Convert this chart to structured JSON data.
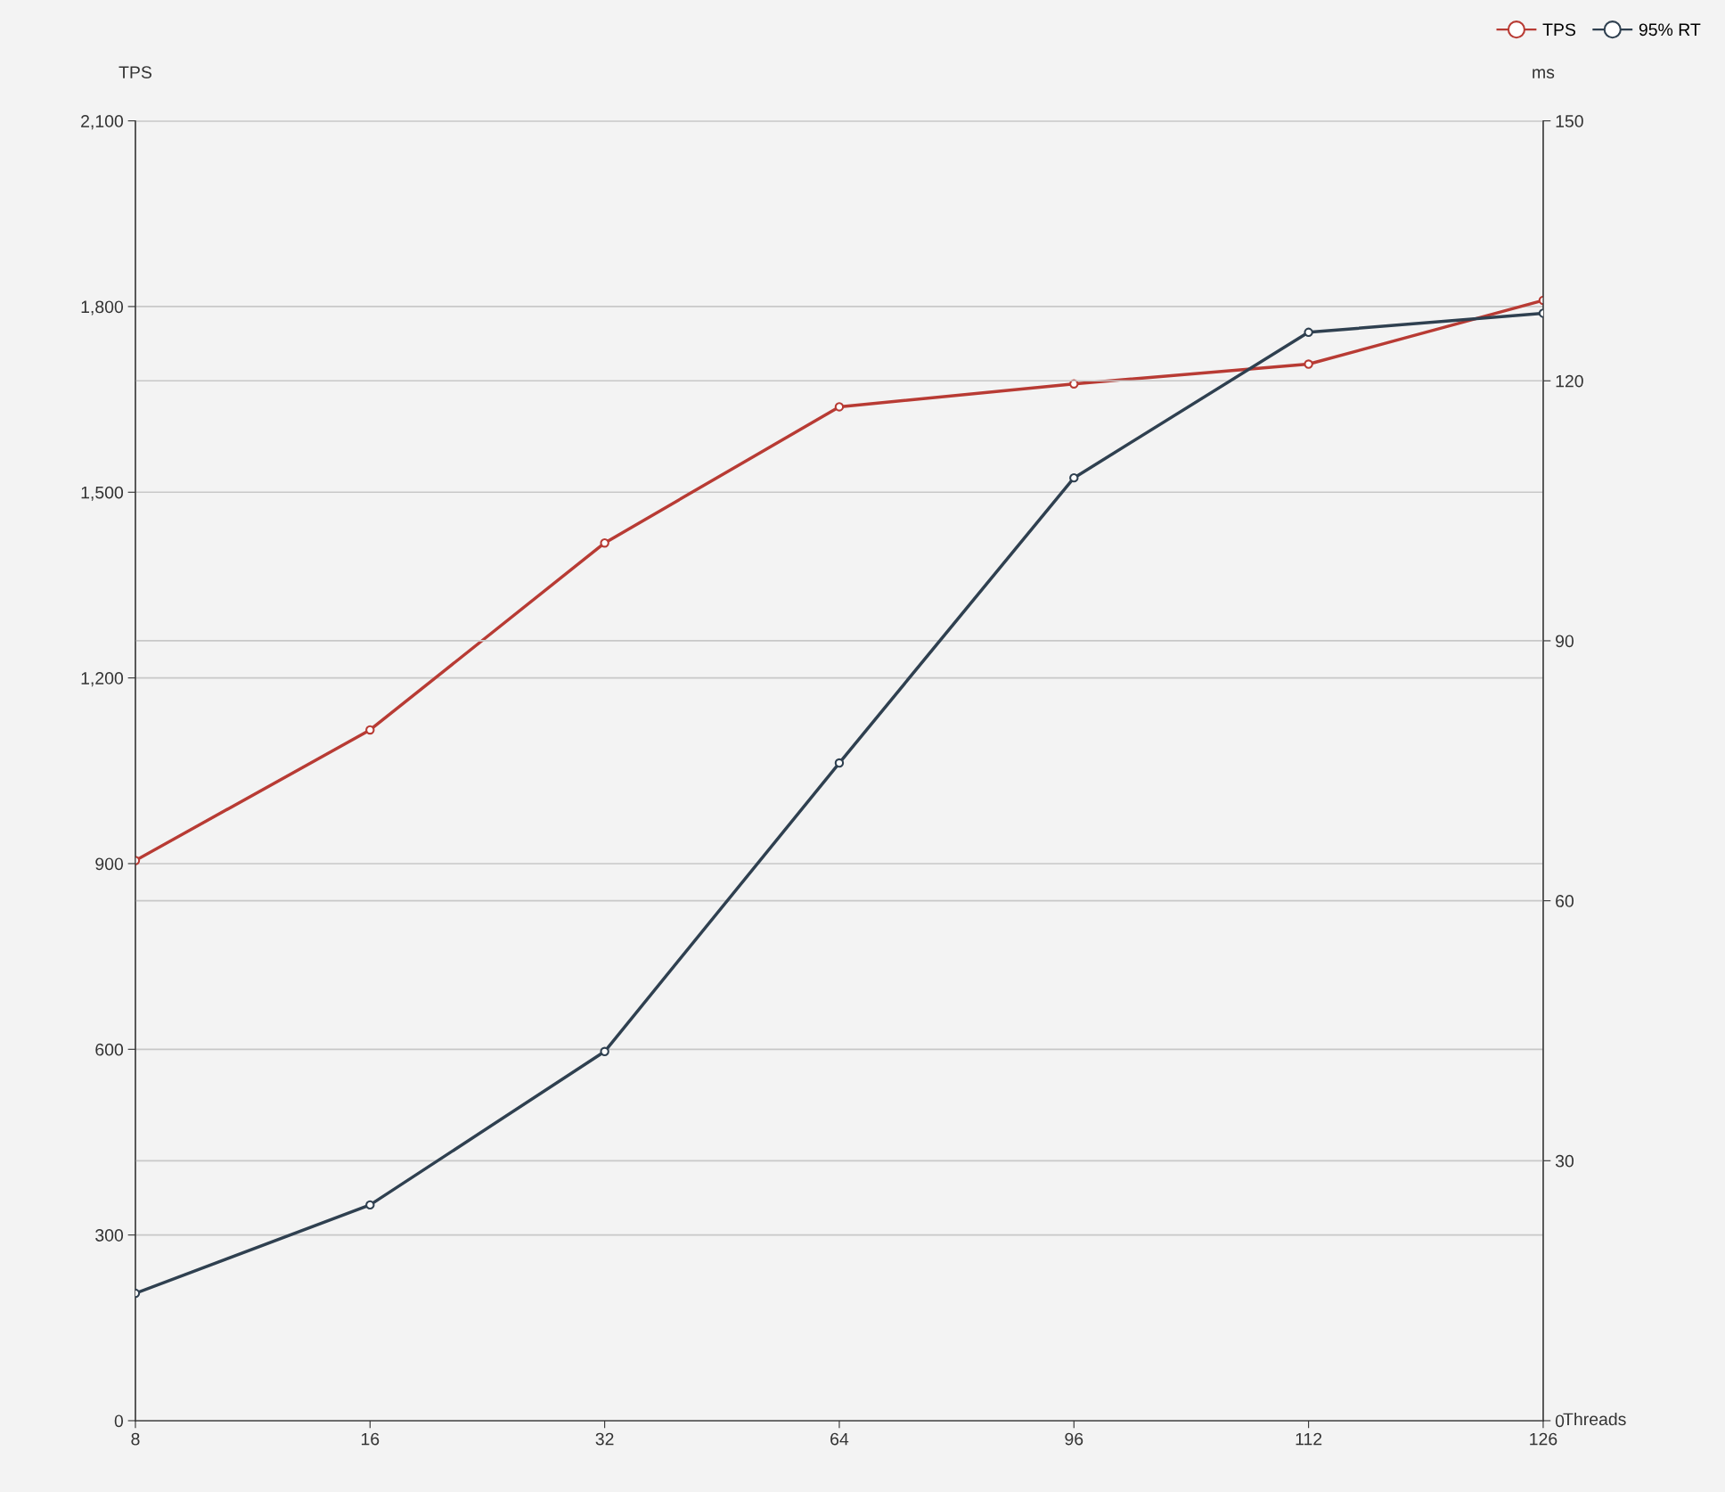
{
  "chart_data": {
    "type": "line",
    "categories": [
      "8",
      "16",
      "32",
      "64",
      "96",
      "112",
      "126"
    ],
    "xlabel": "Threads",
    "ylabel": "TPS",
    "y2label": "ms",
    "series": [
      {
        "name": "TPS",
        "color": "#b83b34",
        "values": [
          905,
          1116,
          1418,
          1638,
          1675,
          1707,
          1810
        ]
      },
      {
        "name": "95% RT",
        "color": "#2f4050",
        "axis": "y2",
        "values": [
          14.7,
          24.9,
          42.6,
          75.9,
          108.8,
          125.6,
          127.8
        ]
      }
    ],
    "ylim": [
      0,
      2100
    ],
    "yticks": [
      0,
      300,
      600,
      900,
      {
        "value": 1200,
        "label": "1,200"
      },
      {
        "value": 1500,
        "label": "1,500"
      },
      {
        "value": 1800,
        "label": "1,800"
      },
      {
        "value": 2100,
        "label": "2,100"
      }
    ],
    "y2lim": [
      0,
      150
    ],
    "y2ticks": [
      0,
      30,
      60,
      90,
      120,
      150
    ],
    "grid": "y",
    "legend": "top right",
    "marker": "circle",
    "line_style": "solid"
  }
}
